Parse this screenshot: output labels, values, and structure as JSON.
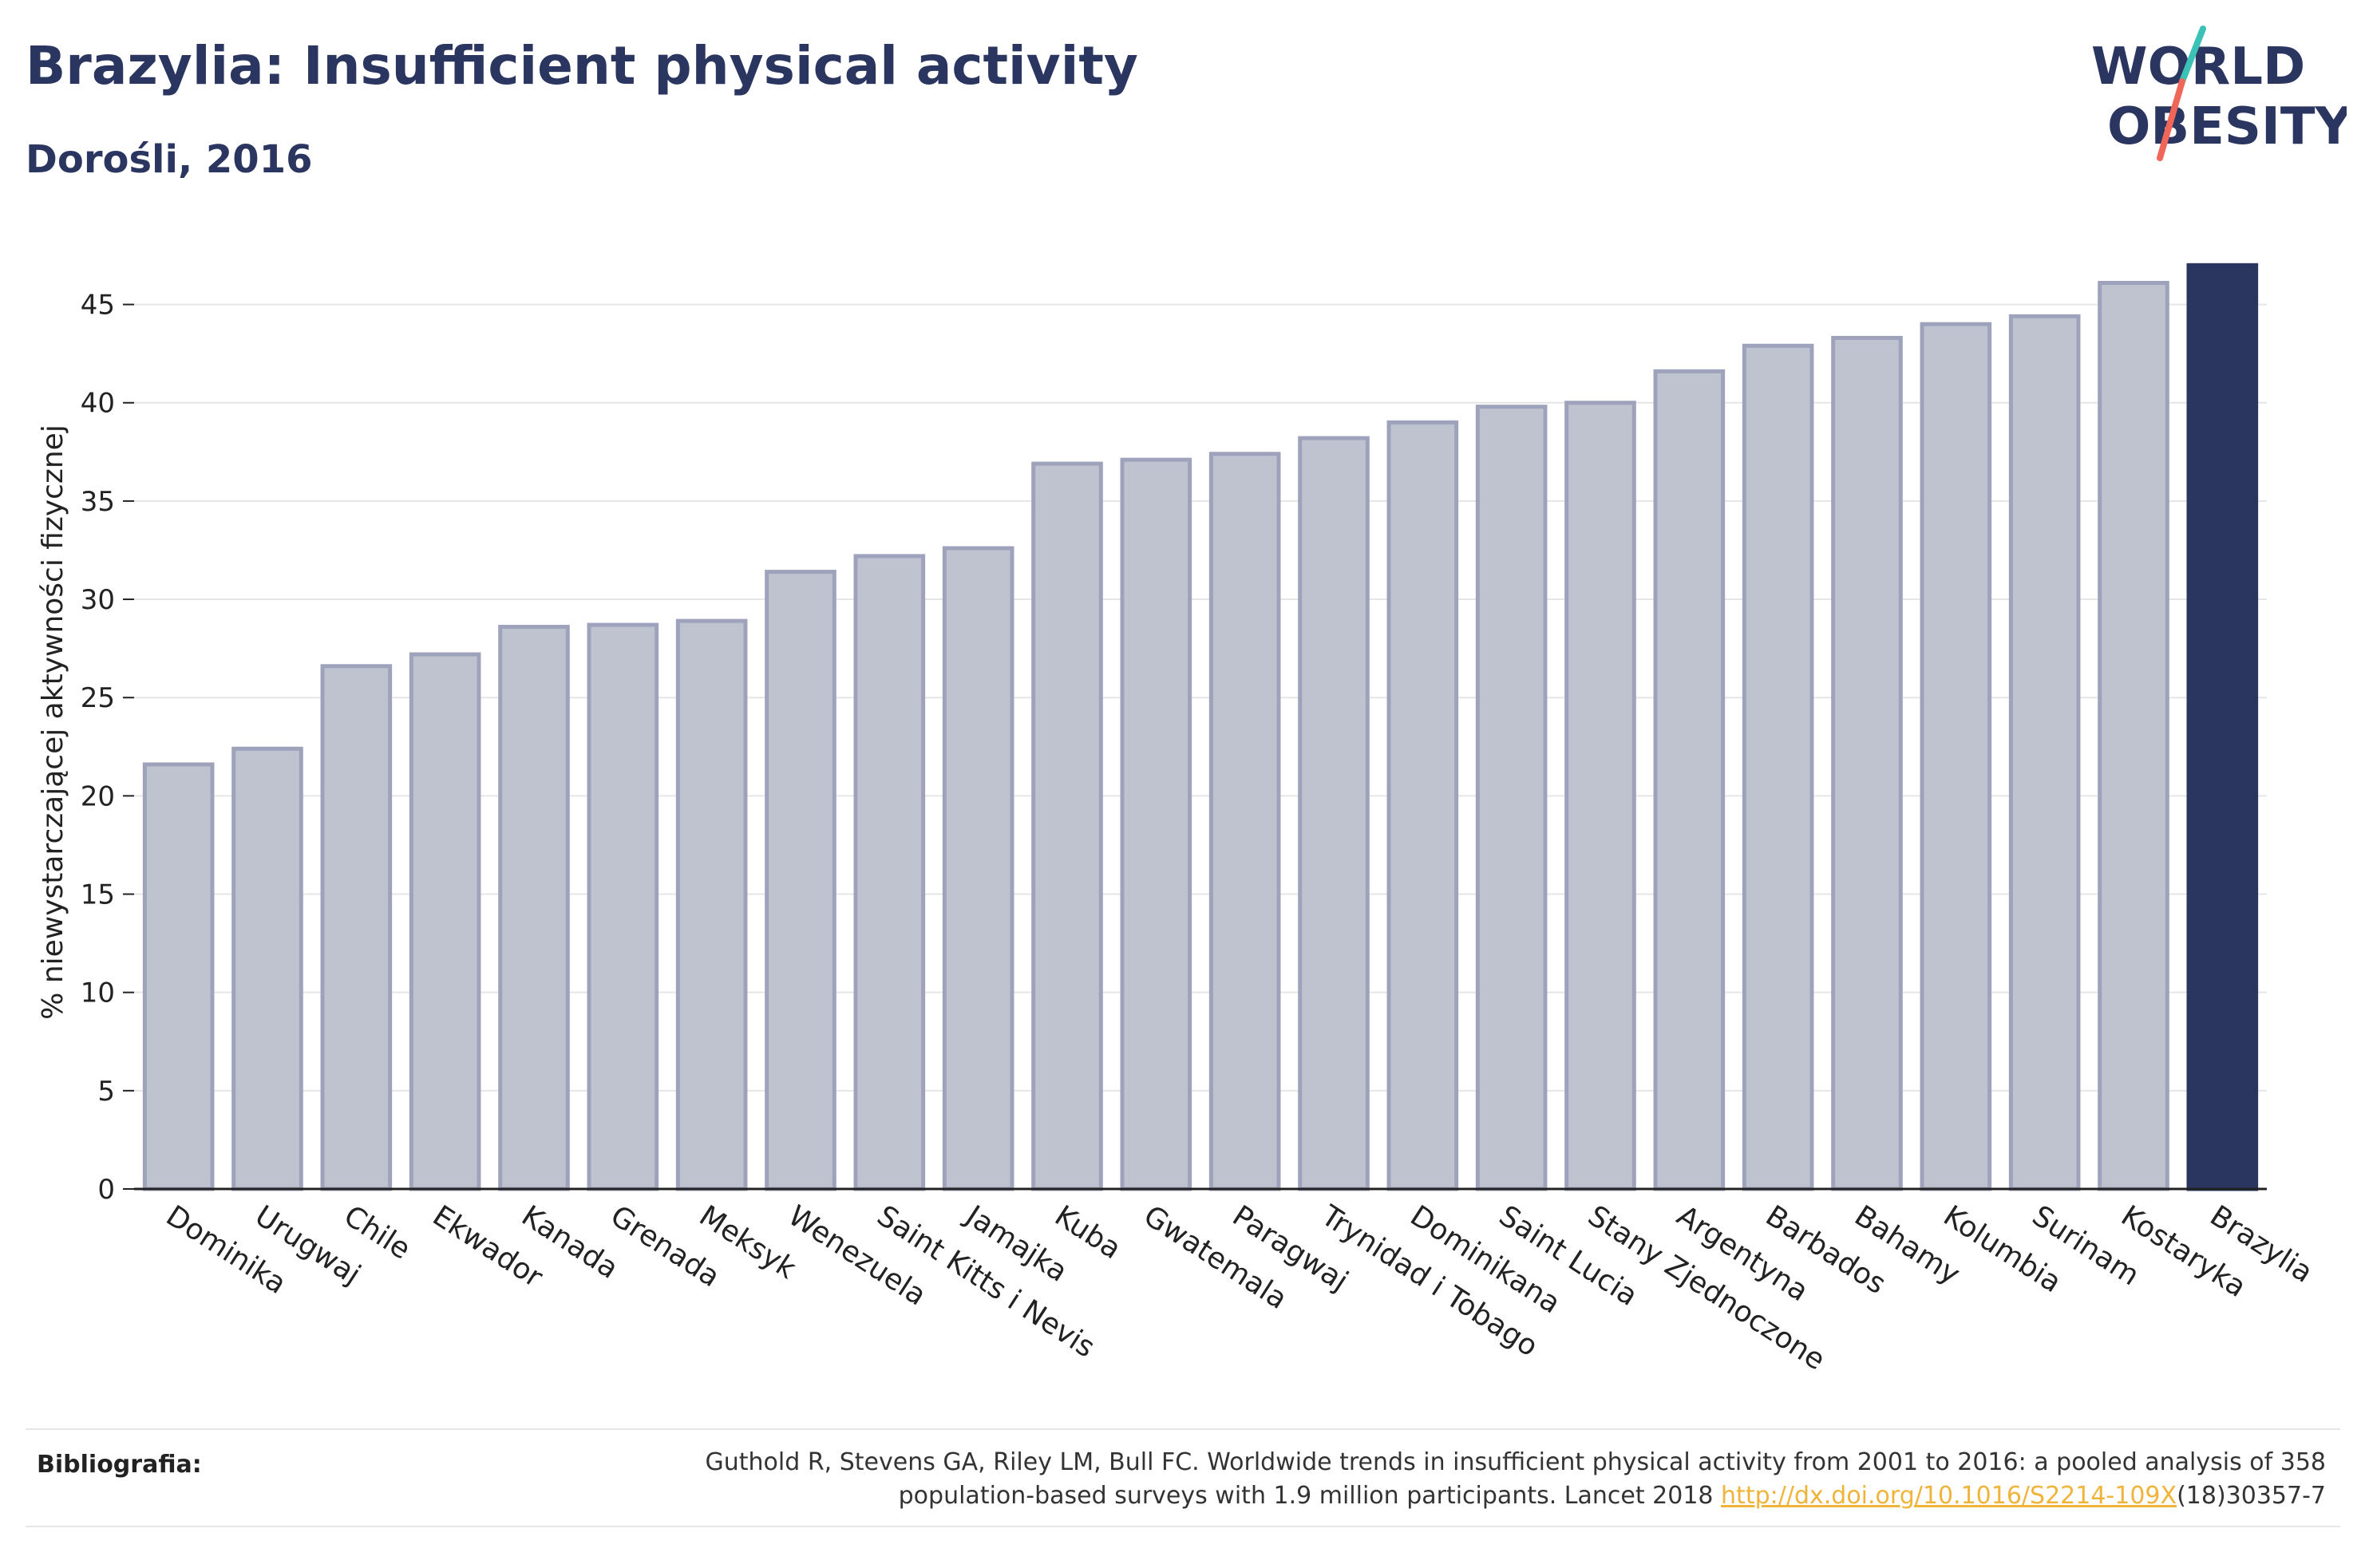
{
  "header": {
    "title": "Brazylia: Insufficient physical activity",
    "subtitle": "Dorośli, 2016"
  },
  "logo": {
    "line1": "WORLD",
    "line2": "OBESITY",
    "colors": {
      "text": "#2a3560",
      "accent_teal": "#3cc1b7",
      "accent_coral": "#f0675a"
    }
  },
  "colors": {
    "bar_default_fill": "#bfc2cf",
    "bar_default_stroke": "#9ea3bb",
    "bar_highlight": "#2a3560",
    "text_dark": "#222222",
    "title": "#2a3560"
  },
  "chart_data": {
    "type": "bar",
    "title": "",
    "xlabel": "",
    "ylabel": "% niewystarczającej aktywności fizycznej",
    "ylim": [
      0,
      47.5
    ],
    "yticks": [
      0,
      5,
      10,
      15,
      20,
      25,
      30,
      35,
      40,
      45
    ],
    "grid": true,
    "highlight": "Brazylia",
    "categories": [
      "Dominika",
      "Urugwaj",
      "Chile",
      "Ekwador",
      "Kanada",
      "Grenada",
      "Meksyk",
      "Wenezuela",
      "Saint Kitts i Nevis",
      "Jamajka",
      "Kuba",
      "Gwatemala",
      "Paragwaj",
      "Trynidad i Tobago",
      "Dominikana",
      "Saint Lucia",
      "Stany Zjednoczone",
      "Argentyna",
      "Barbados",
      "Bahamy",
      "Kolumbia",
      "Surinam",
      "Kostaryka",
      "Brazylia"
    ],
    "values": [
      21.6,
      22.4,
      26.6,
      27.2,
      28.6,
      28.7,
      28.9,
      31.4,
      32.2,
      32.6,
      36.9,
      37.1,
      37.4,
      38.2,
      39.0,
      39.8,
      40.0,
      41.6,
      42.9,
      43.3,
      44.0,
      44.4,
      46.1,
      47.0
    ]
  },
  "footer": {
    "label": "Bibliografia:",
    "citation_line1": "Guthold R, Stevens GA, Riley LM, Bull FC. Worldwide trends in insufficient physical activity from 2001 to 2016: a pooled analysis of 358",
    "citation_line2_prefix": "population-based surveys with 1.9 million participants. Lancet 2018 ",
    "citation_link": "http://dx.doi.org/10.1016/S2214-109X",
    "citation_line2_suffix": "(18)30357-7"
  }
}
